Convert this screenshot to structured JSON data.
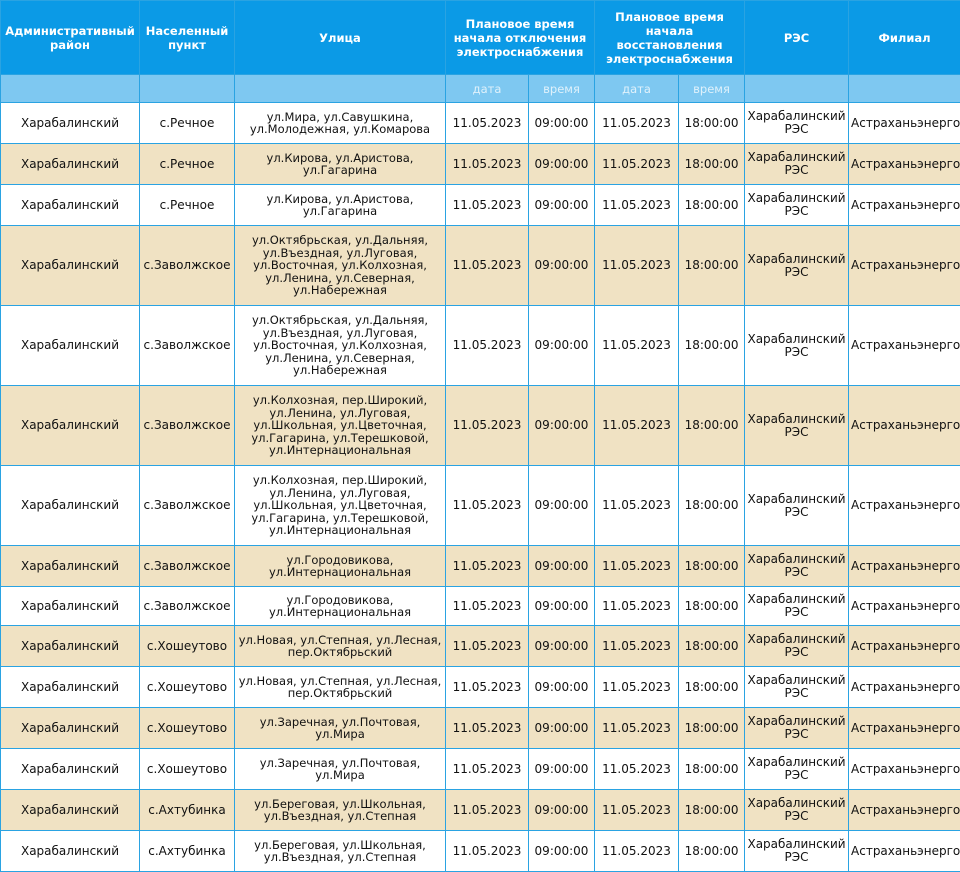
{
  "headers": {
    "district": "Административный район",
    "locality": "Населенный пункт",
    "street": "Улица",
    "off_time": "Плановое время начала отключения электроснабжения",
    "restore_time": "Плановое время начала восстановления электроснабжения",
    "res": "РЭС",
    "branch": "Филиал"
  },
  "subheaders": {
    "date": "дата",
    "time": "время"
  },
  "rows": [
    {
      "district": "Харабалинский",
      "locality": "с.Речное",
      "street": "ул.Мира, ул.Савушкина, ул.Молодежная, ул.Комарова",
      "off_date": "11.05.2023",
      "off_time": "09:00:00",
      "on_date": "11.05.2023",
      "on_time": "18:00:00",
      "res": "Харабалинский РЭС",
      "branch": "Астраханьэнерго"
    },
    {
      "district": "Харабалинский",
      "locality": "с.Речное",
      "street": "ул.Кирова, ул.Аристова, ул.Гагарина",
      "off_date": "11.05.2023",
      "off_time": "09:00:00",
      "on_date": "11.05.2023",
      "on_time": "18:00:00",
      "res": "Харабалинский РЭС",
      "branch": "Астраханьэнерго"
    },
    {
      "district": "Харабалинский",
      "locality": "с.Речное",
      "street": "ул.Кирова, ул.Аристова, ул.Гагарина",
      "off_date": "11.05.2023",
      "off_time": "09:00:00",
      "on_date": "11.05.2023",
      "on_time": "18:00:00",
      "res": "Харабалинский РЭС",
      "branch": "Астраханьэнерго"
    },
    {
      "district": "Харабалинский",
      "locality": "с.Заволжское",
      "street": "ул.Октябрьская, ул.Дальняя, ул.Въездная, ул.Луговая, ул.Восточная, ул.Колхозная, ул.Ленина, ул.Северная, ул.Набережная",
      "off_date": "11.05.2023",
      "off_time": "09:00:00",
      "on_date": "11.05.2023",
      "on_time": "18:00:00",
      "res": "Харабалинский РЭС",
      "branch": "Астраханьэнерго"
    },
    {
      "district": "Харабалинский",
      "locality": "с.Заволжское",
      "street": "ул.Октябрьская, ул.Дальняя, ул.Въездная, ул.Луговая, ул.Восточная, ул.Колхозная, ул.Ленина, ул.Северная, ул.Набережная",
      "off_date": "11.05.2023",
      "off_time": "09:00:00",
      "on_date": "11.05.2023",
      "on_time": "18:00:00",
      "res": "Харабалинский РЭС",
      "branch": "Астраханьэнерго"
    },
    {
      "district": "Харабалинский",
      "locality": "с.Заволжское",
      "street": "ул.Колхозная, пер.Широкий, ул.Ленина, ул.Луговая, ул.Школьная, ул.Цветочная, ул.Гагарина, ул.Терешковой, ул.Интернациональная",
      "off_date": "11.05.2023",
      "off_time": "09:00:00",
      "on_date": "11.05.2023",
      "on_time": "18:00:00",
      "res": "Харабалинский РЭС",
      "branch": "Астраханьэнерго"
    },
    {
      "district": "Харабалинский",
      "locality": "с.Заволжское",
      "street": "ул.Колхозная, пер.Широкий, ул.Ленина, ул.Луговая, ул.Школьная, ул.Цветочная, ул.Гагарина, ул.Терешковой, ул.Интернациональная",
      "off_date": "11.05.2023",
      "off_time": "09:00:00",
      "on_date": "11.05.2023",
      "on_time": "18:00:00",
      "res": "Харабалинский РЭС",
      "branch": "Астраханьэнерго"
    },
    {
      "district": "Харабалинский",
      "locality": "с.Заволжское",
      "street": "ул.Городовикова, ул.Интернациональная",
      "off_date": "11.05.2023",
      "off_time": "09:00:00",
      "on_date": "11.05.2023",
      "on_time": "18:00:00",
      "res": "Харабалинский РЭС",
      "branch": "Астраханьэнерго"
    },
    {
      "district": "Харабалинский",
      "locality": "с.Заволжское",
      "street": "ул.Городовикова, ул.Интернациональная",
      "off_date": "11.05.2023",
      "off_time": "09:00:00",
      "on_date": "11.05.2023",
      "on_time": "18:00:00",
      "res": "Харабалинский РЭС",
      "branch": "Астраханьэнерго"
    },
    {
      "district": "Харабалинский",
      "locality": "с.Хошеутово",
      "street": "ул.Новая, ул.Степная, ул.Лесная, пер.Октябрьский",
      "off_date": "11.05.2023",
      "off_time": "09:00:00",
      "on_date": "11.05.2023",
      "on_time": "18:00:00",
      "res": "Харабалинский РЭС",
      "branch": "Астраханьэнерго"
    },
    {
      "district": "Харабалинский",
      "locality": "с.Хошеутово",
      "street": "ул.Новая, ул.Степная, ул.Лесная, пер.Октябрьский",
      "off_date": "11.05.2023",
      "off_time": "09:00:00",
      "on_date": "11.05.2023",
      "on_time": "18:00:00",
      "res": "Харабалинский РЭС",
      "branch": "Астраханьэнерго"
    },
    {
      "district": "Харабалинский",
      "locality": "с.Хошеутово",
      "street": "ул.Заречная, ул.Почтовая, ул.Мира",
      "off_date": "11.05.2023",
      "off_time": "09:00:00",
      "on_date": "11.05.2023",
      "on_time": "18:00:00",
      "res": "Харабалинский РЭС",
      "branch": "Астраханьэнерго"
    },
    {
      "district": "Харабалинский",
      "locality": "с.Хошеутово",
      "street": "ул.Заречная, ул.Почтовая, ул.Мира",
      "off_date": "11.05.2023",
      "off_time": "09:00:00",
      "on_date": "11.05.2023",
      "on_time": "18:00:00",
      "res": "Харабалинский РЭС",
      "branch": "Астраханьэнерго"
    },
    {
      "district": "Харабалинский",
      "locality": "с.Ахтубинка",
      "street": "ул.Береговая, ул.Школьная, ул.Въездная, ул.Степная",
      "off_date": "11.05.2023",
      "off_time": "09:00:00",
      "on_date": "11.05.2023",
      "on_time": "18:00:00",
      "res": "Харабалинский РЭС",
      "branch": "Астраханьэнерго"
    },
    {
      "district": "Харабалинский",
      "locality": "с.Ахтубинка",
      "street": "ул.Береговая, ул.Школьная, ул.Въездная, ул.Степная",
      "off_date": "11.05.2023",
      "off_time": "09:00:00",
      "on_date": "11.05.2023",
      "on_time": "18:00:00",
      "res": "Харабалинский РЭС",
      "branch": "Астраханьэнерго"
    }
  ]
}
